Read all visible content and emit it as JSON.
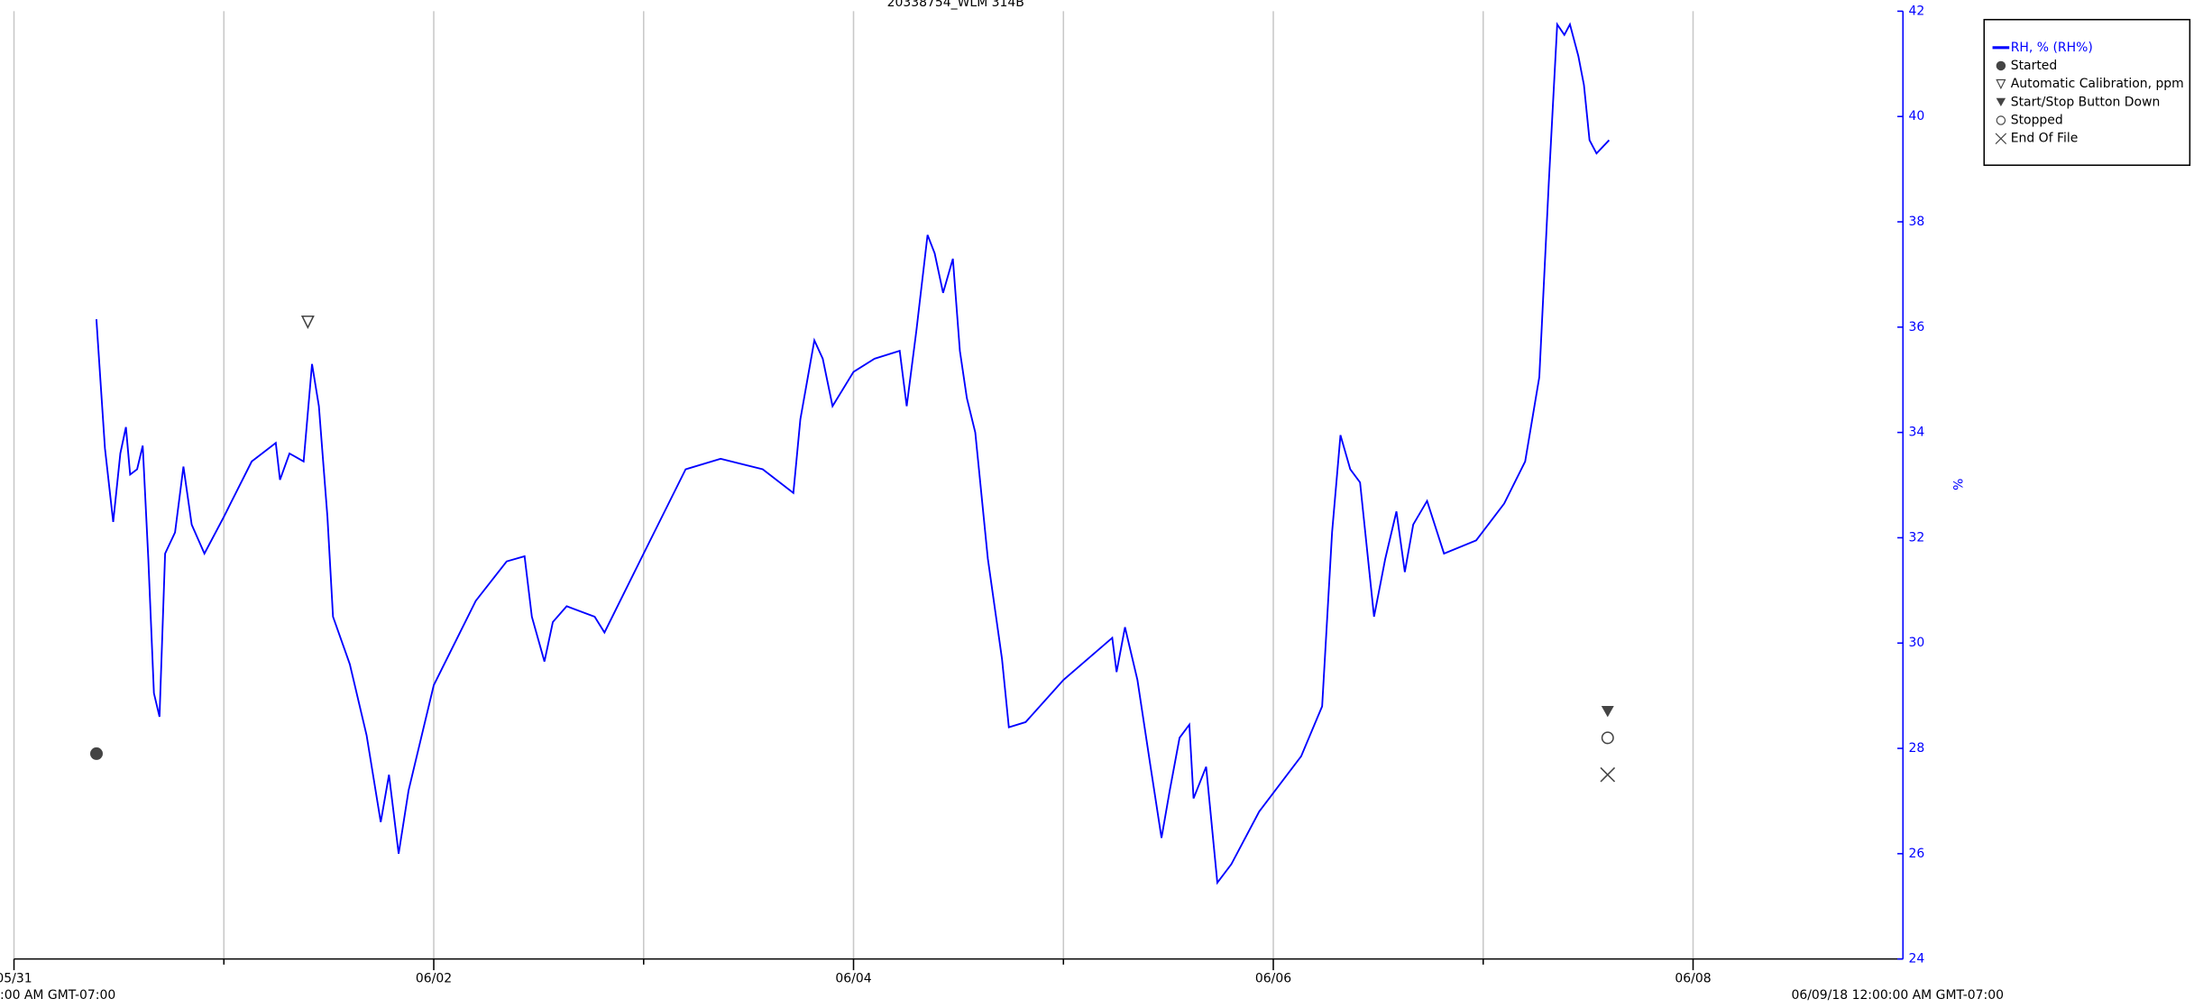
{
  "chart_data": {
    "type": "line",
    "title": "20338754_WLM 314B",
    "xlim": [
      0,
      9
    ],
    "xlim_labels": [
      ":00 AM GMT-07:00",
      "06/09/18 12:00:00 AM GMT-07:00"
    ],
    "xticks": [
      {
        "value": 0,
        "label": "05/31"
      },
      {
        "value": 2,
        "label": "06/02"
      },
      {
        "value": 4,
        "label": "06/04"
      },
      {
        "value": 6,
        "label": "06/06"
      },
      {
        "value": 8,
        "label": "06/08"
      }
    ],
    "xminorticks": [
      1,
      3,
      5,
      7
    ],
    "ylim": [
      24,
      42
    ],
    "yticks": [
      24,
      26,
      28,
      30,
      32,
      34,
      36,
      38,
      40,
      42
    ],
    "ylabel": "%",
    "grid": true,
    "x": [
      0.393,
      0.4,
      0.433,
      0.473,
      0.507,
      0.533,
      0.553,
      0.587,
      0.613,
      0.64,
      0.667,
      0.693,
      0.72,
      0.767,
      0.807,
      0.847,
      0.907,
      1.0,
      1.133,
      1.247,
      1.267,
      1.313,
      1.38,
      1.42,
      1.453,
      1.493,
      1.52,
      1.6,
      1.68,
      1.747,
      1.787,
      1.833,
      1.88,
      2.0,
      2.2,
      2.347,
      2.433,
      2.467,
      2.527,
      2.567,
      2.633,
      2.767,
      2.813,
      2.987,
      3.2,
      3.367,
      3.567,
      3.713,
      3.747,
      3.813,
      3.853,
      3.9,
      4.0,
      4.1,
      4.22,
      4.253,
      4.3,
      4.353,
      4.387,
      4.427,
      4.473,
      4.507,
      4.54,
      4.58,
      4.64,
      4.707,
      4.74,
      4.82,
      5.0,
      5.233,
      5.253,
      5.293,
      5.353,
      5.413,
      5.467,
      5.507,
      5.553,
      5.6,
      5.62,
      5.68,
      5.733,
      5.8,
      5.933,
      6.133,
      6.233,
      6.28,
      6.32,
      6.367,
      6.413,
      6.48,
      6.533,
      6.587,
      6.627,
      6.667,
      6.733,
      6.813,
      6.967,
      7.1,
      7.2,
      7.267,
      7.313,
      7.353,
      7.387,
      7.413,
      7.453,
      7.48,
      7.507,
      7.54,
      7.6
    ],
    "series": [
      {
        "name": "RH, % (RH%)",
        "color": "#0000ff",
        "values": [
          36.15,
          35.7,
          33.7,
          32.3,
          33.6,
          34.1,
          33.2,
          33.3,
          33.75,
          31.6,
          29.05,
          28.6,
          31.7,
          32.1,
          33.35,
          32.25,
          31.7,
          32.4,
          33.45,
          33.8,
          33.1,
          33.6,
          33.45,
          35.3,
          34.5,
          32.4,
          30.5,
          29.6,
          28.25,
          26.6,
          27.5,
          26.0,
          27.2,
          29.2,
          30.8,
          31.55,
          31.65,
          30.5,
          29.65,
          30.4,
          30.7,
          30.5,
          30.2,
          31.6,
          33.3,
          33.5,
          33.3,
          32.85,
          34.25,
          35.75,
          35.4,
          34.5,
          35.15,
          35.4,
          35.55,
          34.5,
          35.95,
          37.75,
          37.4,
          36.65,
          37.3,
          35.55,
          34.65,
          34.0,
          31.6,
          29.7,
          28.4,
          28.5,
          29.3,
          30.1,
          29.45,
          30.3,
          29.3,
          27.7,
          26.3,
          27.2,
          28.2,
          28.45,
          27.05,
          27.65,
          25.45,
          25.8,
          26.8,
          27.85,
          28.8,
          32.1,
          33.95,
          33.3,
          33.05,
          30.5,
          31.6,
          32.5,
          31.35,
          32.25,
          32.7,
          31.7,
          31.95,
          32.65,
          33.45,
          35.05,
          38.75,
          41.75,
          41.55,
          41.75,
          41.15,
          40.6,
          39.55,
          39.3,
          39.55
        ]
      }
    ],
    "events": [
      {
        "name": "Started",
        "shape": "circle-filled",
        "x": 0.393,
        "y": 27.9
      },
      {
        "name": "Automatic Calibration, ppm",
        "shape": "triangle-open",
        "x": 1.4,
        "y": 36.1
      },
      {
        "name": "Start/Stop Button Down",
        "shape": "triangle-filled",
        "x": 7.593,
        "y": 28.7
      },
      {
        "name": "Stopped",
        "shape": "circle-open",
        "x": 7.593,
        "y": 28.2
      },
      {
        "name": "End Of File",
        "shape": "cross",
        "x": 7.593,
        "y": 27.5
      }
    ]
  }
}
